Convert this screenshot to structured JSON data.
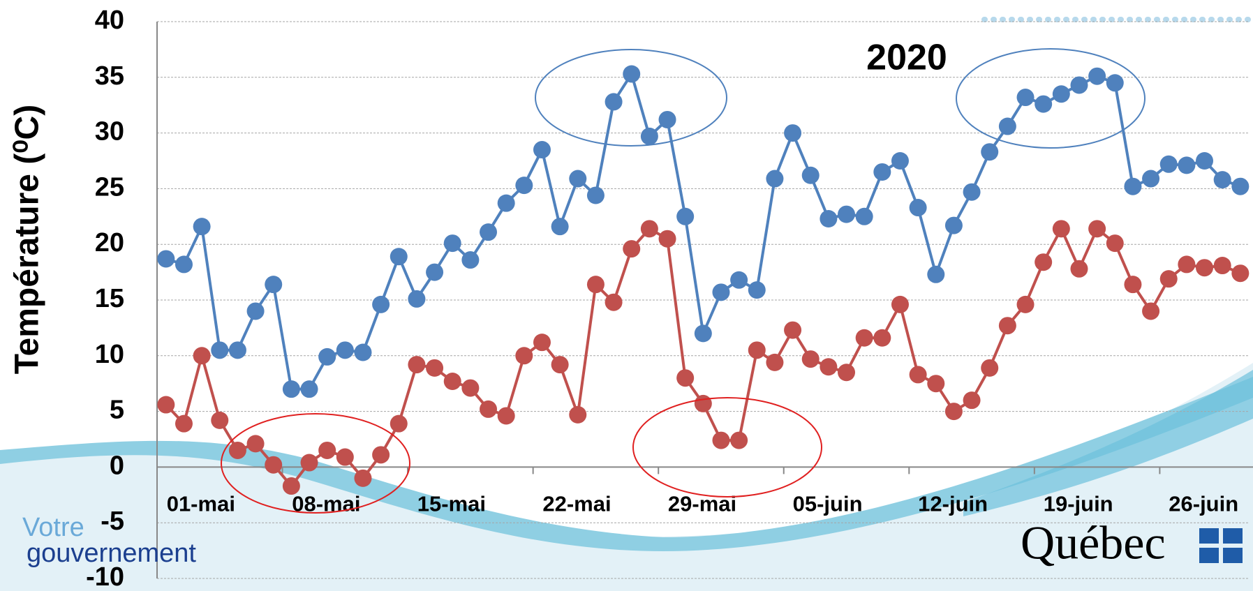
{
  "chart_data": {
    "type": "line",
    "title": "2020",
    "ylabel": "Température (⁰C)",
    "categories": [
      "01-mai",
      null,
      null,
      null,
      null,
      null,
      null,
      "08-mai",
      null,
      null,
      null,
      null,
      null,
      null,
      "15-mai",
      null,
      null,
      null,
      null,
      null,
      null,
      "22-mai",
      null,
      null,
      null,
      null,
      null,
      null,
      "29-mai",
      null,
      null,
      null,
      null,
      null,
      null,
      "05-juin",
      null,
      null,
      null,
      null,
      null,
      null,
      "12-juin",
      null,
      null,
      null,
      null,
      null,
      null,
      "19-juin",
      null,
      null,
      null,
      null,
      null,
      null,
      "26-juin",
      null,
      null,
      null,
      null
    ],
    "series": [
      {
        "color": "#4f81bd",
        "values": [
          18.7,
          18.2,
          21.6,
          10.5,
          10.5,
          14.0,
          16.4,
          7.0,
          7.0,
          9.9,
          10.5,
          10.3,
          14.6,
          18.9,
          15.1,
          17.5,
          20.1,
          18.6,
          21.1,
          23.7,
          25.3,
          28.5,
          21.6,
          25.9,
          24.4,
          32.8,
          35.3,
          29.7,
          31.2,
          22.5,
          12.0,
          15.7,
          16.8,
          15.9,
          25.9,
          30.0,
          26.2,
          22.3,
          22.7,
          22.5,
          26.5,
          27.5,
          23.3,
          17.3,
          21.7,
          24.7,
          28.3,
          30.6,
          33.2,
          32.6,
          33.5,
          34.3,
          35.1,
          34.5,
          25.2,
          25.9,
          27.2,
          27.1,
          27.5,
          25.8,
          25.2
        ]
      },
      {
        "color": "#c0504d",
        "values": [
          5.6,
          3.9,
          10.0,
          4.2,
          1.5,
          2.1,
          0.2,
          -1.7,
          0.4,
          1.5,
          0.9,
          -1.0,
          1.1,
          3.9,
          9.2,
          8.9,
          7.7,
          7.1,
          5.2,
          4.6,
          10.0,
          11.2,
          9.2,
          4.7,
          16.4,
          14.8,
          19.6,
          21.4,
          20.5,
          8.0,
          5.7,
          2.4,
          2.4,
          10.5,
          9.4,
          12.3,
          9.7,
          9.0,
          8.5,
          11.6,
          11.6,
          14.6,
          8.3,
          7.5,
          5.0,
          6.0,
          8.9,
          12.7,
          14.6,
          18.4,
          21.4,
          17.8,
          21.4,
          20.1,
          16.4,
          14.0,
          16.9,
          18.2,
          17.9,
          18.1,
          17.4
        ]
      }
    ],
    "ylim": [
      -10,
      40
    ],
    "yticks": [
      -10,
      -5,
      0,
      5,
      10,
      15,
      20,
      25,
      30,
      35,
      40
    ],
    "grid": true
  },
  "branding": {
    "left_top": "Votre",
    "left_bottom": "gouvernement",
    "right": "Québec"
  }
}
